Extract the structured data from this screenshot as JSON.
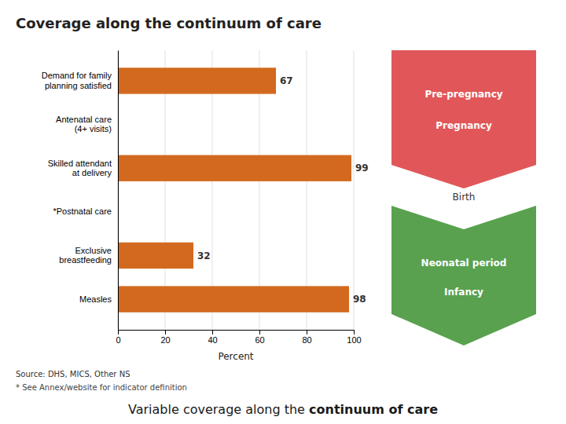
{
  "chart_data": {
    "type": "bar",
    "orientation": "horizontal",
    "title": "Coverage along the continuum of care",
    "categories": [
      "Demand for family\nplanning satisfied",
      "Antenatal care\n(4+ visits)",
      "Skilled attendant\nat delivery",
      "*Postnatal care",
      "Exclusive\nbreastfeeding",
      "Measles"
    ],
    "values": [
      67,
      null,
      99,
      null,
      32,
      98
    ],
    "color": "#D2691E",
    "xlim": [
      0,
      100
    ],
    "xticks": [
      0,
      20,
      40,
      60,
      80,
      100
    ],
    "xlabel": "Percent",
    "grid": true,
    "data_labels": true,
    "annotations": [
      "Pre-pregnancy",
      "Pregnancy",
      "Birth",
      "Neonatal period",
      "Infancy",
      "Source: DHS, MICS, Other NS",
      "* See Annex/website for indicator definition",
      "Variable coverage along the ",
      "continuum of care"
    ]
  }
}
